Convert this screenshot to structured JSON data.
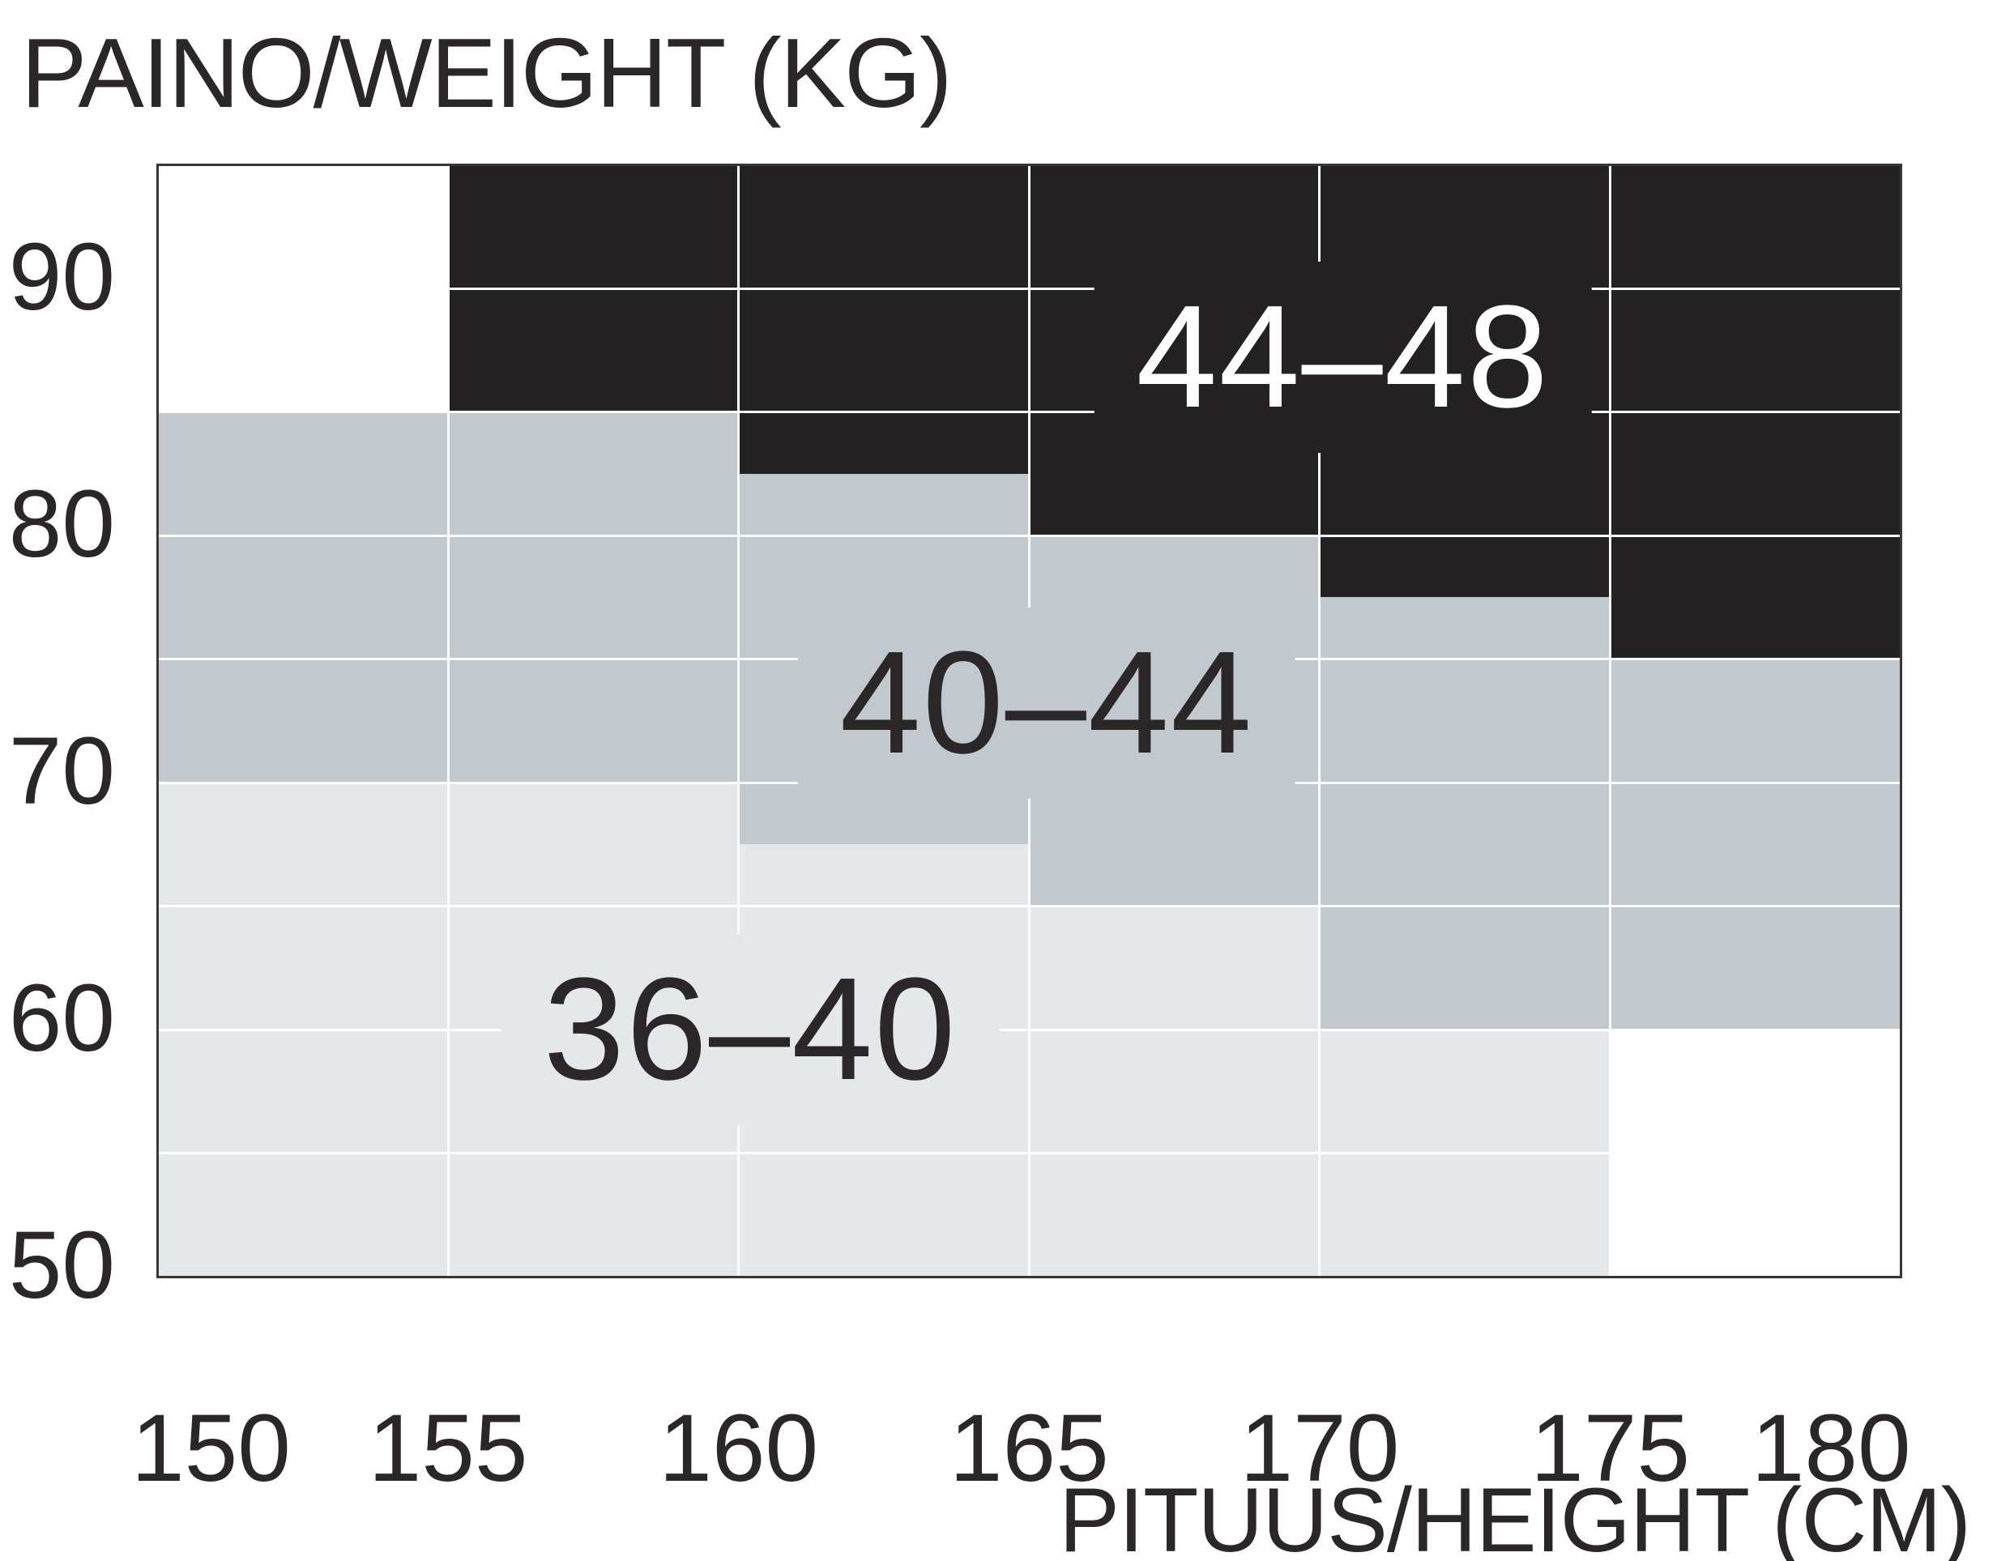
{
  "title": {
    "text": "PAINO/WEIGHT (KG)"
  },
  "axis_title": {
    "text": "PITUUS/HEIGHT (CM)"
  },
  "colors": {
    "background": "#ffffff",
    "size_36_40": "#e4e8eb",
    "size_40_44": "#c1c8ce",
    "size_44_48": "#242122",
    "gridline": "#ffffff",
    "plot_border": "#3a3637",
    "text_dark": "#2b2728",
    "text_light": "#ffffff"
  },
  "chart_data": {
    "type": "heatmap",
    "title": "PAINO/WEIGHT (KG)",
    "xlabel": "PITUUS/HEIGHT (CM)",
    "ylabel": "PAINO/WEIGHT (KG)",
    "x_unit": "cm",
    "y_unit": "kg",
    "x_range": [
      150,
      180
    ],
    "y_range": [
      50,
      95
    ],
    "x_ticks": [
      "150",
      "155",
      "160",
      "165",
      "170",
      "175",
      "180"
    ],
    "x_tick_values": [
      150,
      155,
      160,
      165,
      170,
      175,
      180
    ],
    "y_ticks": [
      "90",
      "80",
      "70",
      "60",
      "50"
    ],
    "y_tick_values": [
      90,
      80,
      70,
      60,
      50
    ],
    "grid": {
      "x_lines": [
        155,
        160,
        165,
        170,
        175
      ],
      "y_lines": [
        90,
        85,
        80,
        75,
        70,
        65,
        60,
        55
      ],
      "line_width": 3
    },
    "regions": [
      {
        "name": "size-36-40",
        "label": "36–40",
        "color": "#e4e8eb",
        "text_color": "#2b2728",
        "label_anchor": {
          "x": 160.2,
          "y": 60.0
        },
        "segments": [
          {
            "x": [
              150,
              155
            ],
            "y": [
              50,
              70
            ]
          },
          {
            "x": [
              155,
              160
            ],
            "y": [
              50,
              70
            ]
          },
          {
            "x": [
              160,
              165
            ],
            "y": [
              50,
              67.5
            ]
          },
          {
            "x": [
              165,
              170
            ],
            "y": [
              50,
              65
            ]
          },
          {
            "x": [
              170,
              175
            ],
            "y": [
              50,
              60
            ]
          }
        ]
      },
      {
        "name": "size-40-44",
        "label": "40–44",
        "color": "#c1c8ce",
        "text_color": "#2b2728",
        "label_anchor": {
          "x": 165.3,
          "y": 73.2
        },
        "segments": [
          {
            "x": [
              150,
              155
            ],
            "y": [
              70,
              85
            ]
          },
          {
            "x": [
              155,
              160
            ],
            "y": [
              70,
              85
            ]
          },
          {
            "x": [
              160,
              165
            ],
            "y": [
              67.5,
              82.5
            ]
          },
          {
            "x": [
              165,
              170
            ],
            "y": [
              65,
              80
            ]
          },
          {
            "x": [
              170,
              175
            ],
            "y": [
              60,
              77.5
            ]
          },
          {
            "x": [
              175,
              180
            ],
            "y": [
              60,
              75
            ]
          }
        ]
      },
      {
        "name": "size-44-48",
        "label": "44–48",
        "color": "#242122",
        "text_color": "#ffffff",
        "label_anchor": {
          "x": 170.4,
          "y": 87.2
        },
        "segments": [
          {
            "x": [
              155,
              160
            ],
            "y": [
              85,
              95
            ]
          },
          {
            "x": [
              160,
              165
            ],
            "y": [
              82.5,
              95
            ]
          },
          {
            "x": [
              165,
              170
            ],
            "y": [
              80,
              95
            ]
          },
          {
            "x": [
              170,
              175
            ],
            "y": [
              77.5,
              95
            ]
          },
          {
            "x": [
              175,
              180
            ],
            "y": [
              75,
              95
            ]
          }
        ]
      }
    ]
  }
}
